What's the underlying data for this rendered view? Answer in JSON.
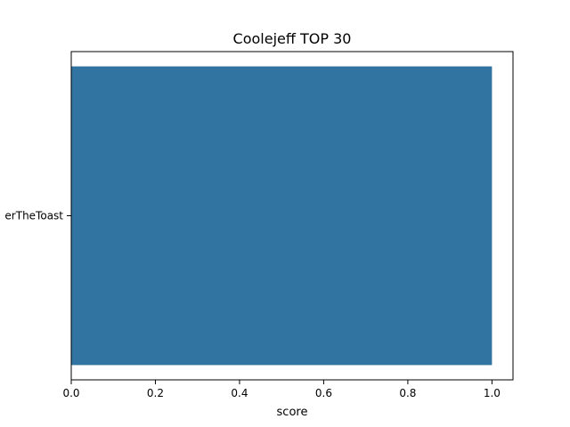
{
  "chart_data": {
    "type": "bar",
    "orientation": "horizontal",
    "title": "Coolejeff TOP 30",
    "xlabel": "score",
    "ylabel": "",
    "categories": [
      "erTheToast"
    ],
    "values": [
      1.0
    ],
    "xlim": [
      0.0,
      1.05
    ],
    "xticks": [
      "0.0",
      "0.2",
      "0.4",
      "0.6",
      "0.8",
      "1.0"
    ],
    "grid": false,
    "legend": "none",
    "bar_color": "#3274a1"
  }
}
